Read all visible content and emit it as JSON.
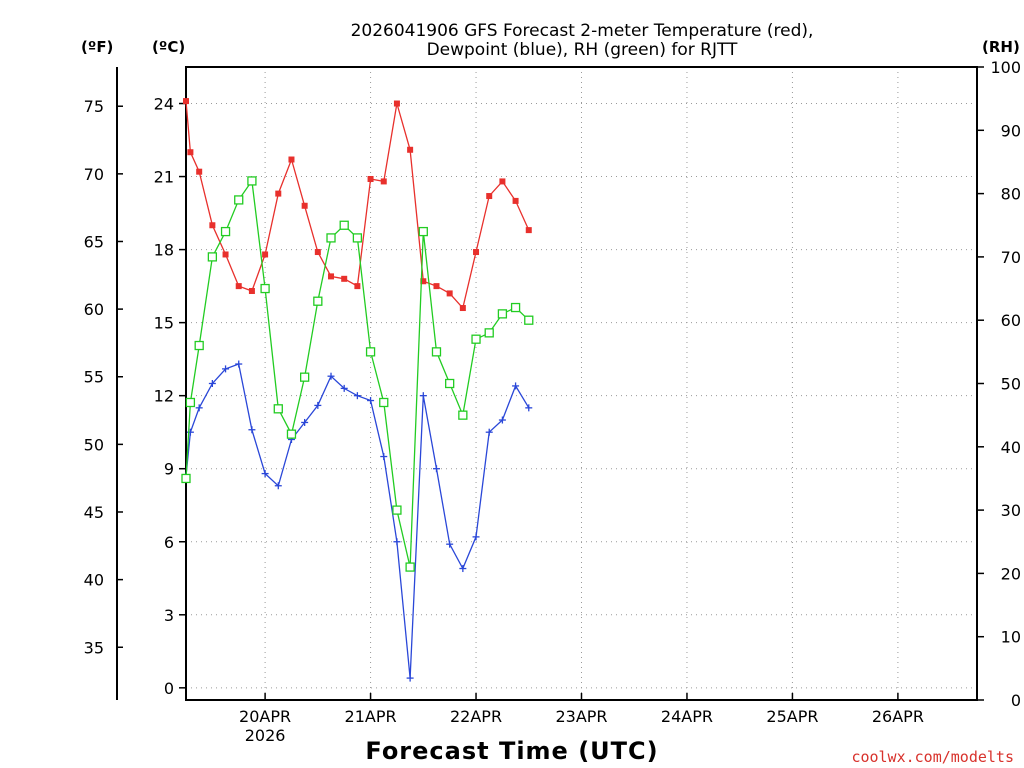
{
  "chart_data": {
    "type": "line",
    "title_lines": [
      "2026041906 GFS Forecast 2-meter Temperature (red),",
      "Dewpoint (blue), RH (green) for RJTT"
    ],
    "xlabel": "Forecast Time (UTC)",
    "unit_f": "(ºF)",
    "unit_c": "(ºC)",
    "unit_rh": "(RH)",
    "credit": "coolwx.com/modelts",
    "x_unit": "hours since 2026-04-19 06Z",
    "xlim": [
      0,
      180
    ],
    "ylim_c": [
      -0.5,
      25.5
    ],
    "ylim_rh": [
      0,
      100
    ],
    "c_ticks": [
      "0",
      "3",
      "6",
      "9",
      "12",
      "15",
      "18",
      "21",
      "24"
    ],
    "f_ticks": [
      "35",
      "40",
      "45",
      "50",
      "55",
      "60",
      "65",
      "70",
      "75"
    ],
    "rh_ticks": [
      "0",
      "10",
      "20",
      "30",
      "40",
      "50",
      "60",
      "70",
      "80",
      "90",
      "100"
    ],
    "x_tick_labels": [
      {
        "hour": 18,
        "label": "20APR",
        "sub": "2026"
      },
      {
        "hour": 42,
        "label": "21APR",
        "sub": ""
      },
      {
        "hour": 66,
        "label": "22APR",
        "sub": ""
      },
      {
        "hour": 90,
        "label": "23APR",
        "sub": ""
      },
      {
        "hour": 114,
        "label": "24APR",
        "sub": ""
      },
      {
        "hour": 138,
        "label": "25APR",
        "sub": ""
      },
      {
        "hour": 162,
        "label": "26APR",
        "sub": ""
      }
    ],
    "series": [
      {
        "name": "Temperature",
        "color": "#e8302c",
        "marker": "square-filled",
        "axis": "c",
        "x": [
          0,
          1,
          3,
          6,
          9,
          12,
          15,
          18,
          21,
          24,
          27,
          30,
          33,
          36,
          39,
          42,
          45,
          48,
          51,
          54,
          57,
          60,
          63,
          66,
          69,
          72,
          75,
          78
        ],
        "y": [
          24.1,
          22.0,
          21.2,
          19.0,
          17.8,
          16.5,
          16.3,
          17.8,
          20.3,
          21.7,
          19.8,
          17.9,
          16.9,
          16.8,
          16.5,
          20.9,
          20.8,
          24.0,
          22.1,
          16.7,
          16.5,
          16.2,
          15.6,
          17.9,
          20.2,
          20.8,
          20.0,
          18.8
        ]
      },
      {
        "name": "Dewpoint",
        "color": "#2a47d8",
        "marker": "plus",
        "axis": "c",
        "x": [
          0,
          1,
          3,
          6,
          9,
          12,
          15,
          18,
          21,
          24,
          27,
          30,
          33,
          36,
          39,
          42,
          45,
          48,
          51,
          54,
          57,
          60,
          63,
          66,
          69,
          72,
          75,
          78
        ],
        "y": [
          8.7,
          10.5,
          11.5,
          12.5,
          13.1,
          13.3,
          10.6,
          8.8,
          8.3,
          10.2,
          10.9,
          11.6,
          12.8,
          12.3,
          12.0,
          11.8,
          9.5,
          6.0,
          0.4,
          12.0,
          9.0,
          5.9,
          4.9,
          6.2,
          10.5,
          11.0,
          12.4,
          11.5
        ]
      },
      {
        "name": "Relative Humidity",
        "color": "#22cc22",
        "marker": "square-open",
        "axis": "rh",
        "x": [
          0,
          1,
          3,
          6,
          9,
          12,
          15,
          18,
          21,
          24,
          27,
          30,
          33,
          36,
          39,
          42,
          45,
          48,
          51,
          54,
          57,
          60,
          63,
          66,
          69,
          72,
          75,
          78
        ],
        "y": [
          35,
          47,
          56,
          70,
          74,
          79,
          82,
          65,
          46,
          42,
          51,
          63,
          73,
          75,
          73,
          55,
          47,
          30,
          21,
          74,
          55,
          50,
          45,
          57,
          58,
          61,
          62,
          60
        ]
      }
    ]
  }
}
